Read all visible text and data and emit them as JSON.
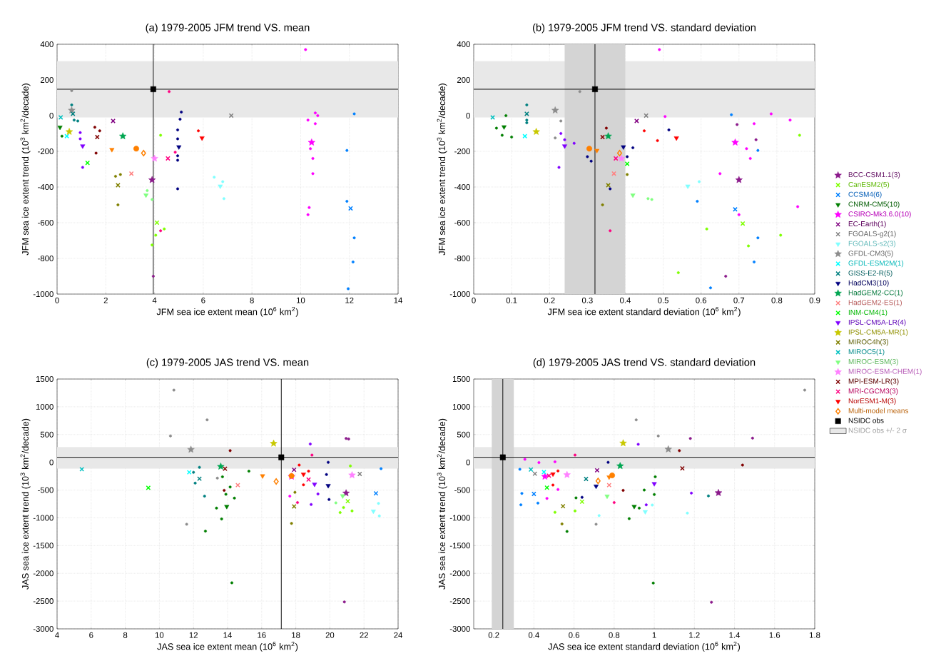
{
  "chart_data": [
    {
      "type": "scatter",
      "title": "(a) 1979-2005 JFM trend VS. mean",
      "xlabel": "JFM sea ice extent mean (10$^{6}$ km$^{2}$)",
      "ylabel": "JFM sea ice extent trend (10$^{3}$ km$^{2}$/decade)",
      "xlim": [
        0,
        14
      ],
      "ylim": [
        -1000,
        400
      ],
      "xticks": [
        0,
        2,
        4,
        6,
        8,
        10,
        12,
        14
      ],
      "yticks": [
        -1000,
        -800,
        -600,
        -400,
        -200,
        0,
        200,
        400
      ],
      "grid": true,
      "bands": [
        {
          "axis": "y",
          "from": -10,
          "to": 305,
          "color": "#e8e8e8"
        }
      ],
      "ref_lines": [
        {
          "axis": "x",
          "value": 3.95,
          "color": "#000000"
        },
        {
          "axis": "y",
          "value": 148,
          "color": "#000000"
        }
      ],
      "series": [
        {
          "color": "#8b1a8b",
          "marker": "star",
          "x": [
            3.9
          ],
          "values": [
            -360
          ]
        },
        {
          "color": "#7fff00",
          "marker": "cross",
          "x": [
            4.1
          ],
          "values": [
            -600
          ]
        },
        {
          "color": "#0080ff",
          "marker": "cross",
          "x": [
            12.05
          ],
          "values": [
            -520
          ]
        },
        {
          "color": "#007f00",
          "marker": "triangle",
          "x": [
            0.12
          ],
          "values": [
            -65
          ]
        },
        {
          "color": "#ff00ff",
          "marker": "star",
          "x": [
            10.45
          ],
          "values": [
            -150
          ]
        },
        {
          "color": "#800080",
          "marker": "cross",
          "x": [
            2.3
          ],
          "values": [
            -30
          ]
        },
        {
          "color": "#808080",
          "marker": "cross",
          "x": [
            7.15
          ],
          "values": [
            0
          ]
        },
        {
          "color": "#80ffff",
          "marker": "triangle",
          "x": [
            6.7
          ],
          "values": [
            -395
          ]
        },
        {
          "color": "#8c8c8c",
          "marker": "star",
          "x": [
            0.6
          ],
          "values": [
            30
          ]
        },
        {
          "color": "#00ffff",
          "marker": "cross",
          "x": [
            0.4
          ],
          "values": [
            -115
          ]
        },
        {
          "color": "#008080",
          "marker": "cross",
          "x": [
            0.65
          ],
          "values": [
            10
          ]
        },
        {
          "color": "#000080",
          "marker": "triangle",
          "x": [
            5.0
          ],
          "values": [
            -175
          ]
        },
        {
          "color": "#00a651",
          "marker": "star",
          "x": [
            2.7
          ],
          "values": [
            -115
          ]
        },
        {
          "color": "#ff8080",
          "marker": "cross",
          "x": [
            3.05
          ],
          "values": [
            -325
          ]
        },
        {
          "color": "#00ff00",
          "marker": "cross",
          "x": [
            1.25
          ],
          "values": [
            -265
          ]
        },
        {
          "color": "#8000ff",
          "marker": "triangle",
          "x": [
            1.05
          ],
          "values": [
            -170
          ]
        },
        {
          "color": "#c8c800",
          "marker": "star",
          "x": [
            0.5
          ],
          "values": [
            -90
          ]
        },
        {
          "color": "#808000",
          "marker": "cross",
          "x": [
            2.5
          ],
          "values": [
            -390
          ]
        },
        {
          "color": "#00c0c0",
          "marker": "cross",
          "x": [
            0.15
          ],
          "values": [
            -10
          ]
        },
        {
          "color": "#80ff80",
          "marker": "triangle",
          "x": [
            3.65
          ],
          "values": [
            -445
          ]
        },
        {
          "color": "#ff80ff",
          "marker": "star",
          "x": [
            4.0
          ],
          "values": [
            -240
          ]
        },
        {
          "color": "#800000",
          "marker": "cross",
          "x": [
            1.65
          ],
          "values": [
            -120
          ]
        },
        {
          "color": "#ff0080",
          "marker": "cross",
          "x": [
            4.55
          ],
          "values": [
            -240
          ]
        },
        {
          "color": "#ff0000",
          "marker": "triangle",
          "x": [
            5.95
          ],
          "values": [
            -125
          ]
        },
        {
          "color": "#ff8000",
          "marker": "diamond",
          "x": [
            3.55
          ],
          "values": [
            -210
          ]
        },
        {
          "color": "#ff8000",
          "marker": "circle",
          "x": [
            3.25
          ],
          "values": [
            -185
          ]
        },
        {
          "color": "#ff8000",
          "marker": "triangle",
          "x": [
            2.25
          ],
          "values": [
            -190
          ]
        },
        {
          "color": "#000000",
          "marker": "square",
          "x": [
            3.95
          ],
          "values": [
            148
          ]
        },
        {
          "marker": "circle",
          "x": [
            10.2,
            10.7,
            10.6,
            10.3,
            10.6,
            10.4,
            10.5,
            10.5,
            10.35,
            10.3,
            12.2,
            11.9,
            11.9,
            12.2,
            12.15,
            11.95,
            5.1,
            5.05,
            4.95,
            4.95,
            4.95,
            4.95,
            4.95,
            6.45,
            6.8,
            6.85,
            4.25,
            4.4,
            4.05,
            3.9,
            4.6,
            4.85,
            4.25,
            5.8,
            1.55,
            1.75,
            1.6,
            2.4,
            2.6,
            2.5,
            0.95,
            0.95,
            1.05,
            0.6,
            0.7,
            0.85,
            3.95,
            3.7,
            3.9,
            0.6,
            0.2
          ],
          "values": [
            370,
            0,
            15,
            -25,
            -45,
            -185,
            -240,
            -325,
            -515,
            -555,
            10,
            -195,
            -480,
            -685,
            -820,
            -970,
            20,
            -20,
            -80,
            -130,
            -225,
            -250,
            -410,
            -345,
            -370,
            -465,
            -110,
            -635,
            -670,
            -725,
            135,
            -205,
            -645,
            -85,
            -65,
            -85,
            -210,
            -340,
            -330,
            -500,
            -95,
            -130,
            -290,
            60,
            -25,
            -30,
            -900,
            -420,
            -470,
            140,
            -115
          ],
          "colors": [
            "#ff00ff",
            "#ff00ff",
            "#ff00ff",
            "#ff00ff",
            "#ff00ff",
            "#ff00ff",
            "#ff00ff",
            "#ff00ff",
            "#ff00ff",
            "#ff00ff",
            "#0080ff",
            "#0080ff",
            "#0080ff",
            "#0080ff",
            "#0080ff",
            "#0080ff",
            "#000080",
            "#000080",
            "#000080",
            "#000080",
            "#000080",
            "#000080",
            "#000080",
            "#80ffff",
            "#80ffff",
            "#80ffff",
            "#7fff00",
            "#7fff00",
            "#7fff00",
            "#7fff00",
            "#ff0080",
            "#ff0080",
            "#ff0080",
            "#ff0000",
            "#800000",
            "#800000",
            "#800000",
            "#808000",
            "#808000",
            "#808000",
            "#8000ff",
            "#8000ff",
            "#8000ff",
            "#008080",
            "#008080",
            "#008080",
            "#8b1a8b",
            "#80ff80",
            "#80ff80",
            "#8c8c8c",
            "#007f00"
          ]
        }
      ]
    },
    {
      "type": "scatter",
      "title": "(b) 1979-2005 JFM trend VS. standard deviation",
      "xlabel": "JFM sea ice extent standard deviation (10$^{6}$ km$^{2}$)",
      "ylabel": "JFM sea ice extent trend (10$^{3}$ km$^{2}$/decade)",
      "xlim": [
        0,
        0.9
      ],
      "ylim": [
        -1000,
        400
      ],
      "xticks": [
        0,
        0.1,
        0.2,
        0.3,
        0.4,
        0.5,
        0.6,
        0.7,
        0.8,
        0.9
      ],
      "yticks": [
        -1000,
        -800,
        -600,
        -400,
        -200,
        0,
        200,
        400
      ],
      "grid": true,
      "legend": "right",
      "bands": [
        {
          "axis": "y",
          "from": -10,
          "to": 305,
          "color": "#e8e8e8",
          "label": "NSIDC obs +/- 2 σ"
        },
        {
          "axis": "x",
          "from": 0.24,
          "to": 0.4,
          "color": "#d4d4d4"
        }
      ],
      "ref_lines": [
        {
          "axis": "x",
          "value": 0.32,
          "color": "#000000"
        },
        {
          "axis": "y",
          "value": 148,
          "color": "#000000"
        }
      ],
      "series": [
        {
          "name": "BCC-CSM1.1(3)",
          "color": "#8b1a8b",
          "marker": "star",
          "x": [
            0.7
          ],
          "values": [
            -360
          ]
        },
        {
          "name": "CanESM2(5)",
          "color": "#7fff00",
          "marker": "cross",
          "x": [
            0.71
          ],
          "values": [
            -605
          ]
        },
        {
          "name": "CCSM4(6)",
          "color": "#0080ff",
          "marker": "cross",
          "x": [
            0.69
          ],
          "values": [
            -525
          ]
        },
        {
          "name": "CNRM-CM5(10)",
          "color": "#007f00",
          "marker": "triangle",
          "x": [
            0.08
          ],
          "values": [
            -63
          ]
        },
        {
          "name": "CSIRO-Mk3.6.0(10)",
          "color": "#ff00ff",
          "marker": "star",
          "x": [
            0.69
          ],
          "values": [
            -150
          ]
        },
        {
          "name": "EC-Earth(1)",
          "color": "#800080",
          "marker": "cross",
          "x": [
            0.43
          ],
          "values": [
            -30
          ]
        },
        {
          "name": "FGOALS-g2(1)",
          "color": "#808080",
          "marker": "cross",
          "x": [
            0.455
          ],
          "values": [
            0
          ]
        },
        {
          "name": "FGOALS-s2(3)",
          "color": "#80ffff",
          "marker": "triangle",
          "x": [
            0.565
          ],
          "values": [
            -395
          ]
        },
        {
          "name": "GFDL-CM3(5)",
          "color": "#8c8c8c",
          "marker": "star",
          "x": [
            0.215
          ],
          "values": [
            30
          ]
        },
        {
          "name": "GFDL-ESM2M(1)",
          "color": "#00ffff",
          "marker": "cross",
          "x": [
            0.135
          ],
          "values": [
            -115
          ]
        },
        {
          "name": "GISS-E2-R(5)",
          "color": "#008080",
          "marker": "cross",
          "x": [
            0.14
          ],
          "values": [
            10
          ]
        },
        {
          "name": "HadCM3(10)",
          "color": "#000080",
          "marker": "triangle",
          "x": [
            0.395
          ],
          "values": [
            -175
          ]
        },
        {
          "name": "HadGEM2-CC(1)",
          "color": "#00a651",
          "marker": "star",
          "x": [
            0.355
          ],
          "values": [
            -115
          ]
        },
        {
          "name": "HadGEM2-ES(1)",
          "color": "#ff8080",
          "marker": "cross",
          "x": [
            0.37
          ],
          "values": [
            -325
          ]
        },
        {
          "name": "INM-CM4(1)",
          "color": "#00ff00",
          "marker": "cross",
          "x": [
            0.405
          ],
          "values": [
            -270
          ]
        },
        {
          "name": "IPSL-CM5A-LR(4)",
          "color": "#8000ff",
          "marker": "triangle",
          "x": [
            0.24
          ],
          "values": [
            -170
          ]
        },
        {
          "name": "IPSL-CM5A-MR(1)",
          "color": "#c8c800",
          "marker": "star",
          "x": [
            0.165
          ],
          "values": [
            -90
          ]
        },
        {
          "name": "MIROC4h(3)",
          "color": "#808000",
          "marker": "cross",
          "x": [
            0.355
          ],
          "values": [
            -390
          ]
        },
        {
          "name": "MIROC5(1)",
          "color": "#00c0c0",
          "marker": "cross",
          "x": [
            0.05
          ],
          "values": [
            -10
          ]
        },
        {
          "name": "MIROC-ESM(3)",
          "color": "#80ff80",
          "marker": "triangle",
          "x": [
            0.42
          ],
          "values": [
            -445
          ]
        },
        {
          "name": "MIROC-ESM-CHEM(1)",
          "color": "#ff80ff",
          "marker": "star",
          "x": [
            0.39
          ],
          "values": [
            -240
          ]
        },
        {
          "name": "MPI-ESM-LR(3)",
          "color": "#800000",
          "marker": "cross",
          "x": [
            0.34
          ],
          "values": [
            -120
          ]
        },
        {
          "name": "MRI-CGCM3(3)",
          "color": "#ff0080",
          "marker": "cross",
          "x": [
            0.375
          ],
          "values": [
            -240
          ]
        },
        {
          "name": "NorESM1-M(3)",
          "color": "#ff0000",
          "marker": "triangle",
          "x": [
            0.535
          ],
          "values": [
            -125
          ]
        },
        {
          "name": "Multi-model means",
          "color": "#ff8000",
          "marker": "diamond",
          "x": [
            0.385
          ],
          "values": [
            -210
          ]
        },
        {
          "color": "#ff8000",
          "marker": "circle",
          "x": [
            0.305
          ],
          "values": [
            -185
          ]
        },
        {
          "color": "#ff8000",
          "marker": "triangle",
          "x": [
            0.325
          ],
          "values": [
            -195
          ]
        },
        {
          "name": "NSIDC obs",
          "color": "#000000",
          "marker": "square",
          "x": [
            0.32
          ],
          "values": [
            148
          ]
        },
        {
          "marker": "circle",
          "x": [
            0.49,
            0.785,
            0.68,
            0.835,
            0.695,
            0.74,
            0.745,
            0.86,
            0.72,
            0.75,
            0.73,
            0.65,
            0.595,
            0.59,
            0.855,
            0.7,
            0.615,
            0.81,
            0.75,
            0.725,
            0.74,
            0.665,
            0.54,
            0.625,
            0.505,
            0.515,
            0.45,
            0.485,
            0.42,
            0.405,
            0.36,
            0.34,
            0.405,
            0.36,
            0.3,
            0.31,
            0.225,
            0.265,
            0.24,
            0.23,
            0.215,
            0.23,
            0.14,
            0.14,
            0.14,
            0.06,
            0.075,
            0.1,
            0.085,
            0.28,
            0.35,
            0.46,
            0.47
          ],
          "values": [
            370,
            10,
            5,
            -25,
            -50,
            -45,
            -135,
            -110,
            -185,
            -195,
            -240,
            -325,
            -370,
            -480,
            -510,
            -555,
            -635,
            -670,
            -685,
            -730,
            -820,
            -900,
            -880,
            -965,
            -5,
            -80,
            -85,
            -140,
            -180,
            -230,
            -645,
            -500,
            -330,
            -410,
            -230,
            -255,
            -290,
            -155,
            -135,
            -100,
            -125,
            -30,
            60,
            -25,
            -40,
            -70,
            -110,
            -120,
            0,
            135,
            -70,
            -465,
            -470
          ],
          "colors": [
            "#ff00ff",
            "#ff00ff",
            "#0080ff",
            "#ff00ff",
            "#8b1a8b",
            "#ff00ff",
            "#8b1a8b",
            "#7fff00",
            "#ff00ff",
            "#0080ff",
            "#ff00ff",
            "#ff00ff",
            "#80ffff",
            "#0080ff",
            "#ff00ff",
            "#ff00ff",
            "#7fff00",
            "#7fff00",
            "#0080ff",
            "#7fff00",
            "#0080ff",
            "#8b1a8b",
            "#7fff00",
            "#0080ff",
            "#ff00ff",
            "#000080",
            "#ff0000",
            "#ff0000",
            "#000080",
            "#000080",
            "#ff0080",
            "#808000",
            "#808000",
            "#000080",
            "#000080",
            "#000080",
            "#8000ff",
            "#8000ff",
            "#8000ff",
            "#8000ff",
            "#8c8c8c",
            "#8c8c8c",
            "#008080",
            "#008080",
            "#008080",
            "#007f00",
            "#007f00",
            "#007f00",
            "#007f00",
            "#8c8c8c",
            "#800000",
            "#80ff80",
            "#80ff80"
          ]
        }
      ]
    },
    {
      "type": "scatter",
      "title": "(c) 1979-2005 JAS trend VS. mean",
      "xlabel": "JAS sea ice extent mean (10$^{6}$ km$^{2}$)",
      "ylabel": "JAS sea ice extent trend (10$^{3}$ km$^{2}$/decade)",
      "xlim": [
        4,
        24
      ],
      "ylim": [
        -3000,
        1500
      ],
      "xticks": [
        4,
        6,
        8,
        10,
        12,
        14,
        16,
        18,
        20,
        22,
        24
      ],
      "yticks": [
        -3000,
        -2500,
        -2000,
        -1500,
        -1000,
        -500,
        0,
        500,
        1000,
        1500
      ],
      "grid": true,
      "bands": [
        {
          "axis": "y",
          "from": -115,
          "to": 275,
          "color": "#e8e8e8"
        }
      ],
      "ref_lines": [
        {
          "axis": "x",
          "value": 17.15,
          "color": "#000000"
        },
        {
          "axis": "y",
          "value": 90,
          "color": "#000000"
        }
      ],
      "series": [
        {
          "color": "#8b1a8b",
          "marker": "star",
          "x": [
            20.95
          ],
          "values": [
            -555
          ]
        },
        {
          "color": "#7fff00",
          "marker": "cross",
          "x": [
            21.05
          ],
          "values": [
            -700
          ]
        },
        {
          "color": "#0080ff",
          "marker": "cross",
          "x": [
            22.7
          ],
          "values": [
            -560
          ]
        },
        {
          "color": "#007f00",
          "marker": "triangle",
          "x": [
            13.95
          ],
          "values": [
            -795
          ]
        },
        {
          "color": "#ff00ff",
          "marker": "star",
          "x": [
            17.75
          ],
          "values": [
            -255
          ]
        },
        {
          "color": "#800080",
          "marker": "cross",
          "x": [
            17.9
          ],
          "values": [
            -135
          ]
        },
        {
          "color": "#808080",
          "marker": "cross",
          "x": [
            21.75
          ],
          "values": [
            -210
          ]
        },
        {
          "color": "#80ffff",
          "marker": "triangle",
          "x": [
            22.55
          ],
          "values": [
            -880
          ]
        },
        {
          "color": "#8c8c8c",
          "marker": "star",
          "x": [
            11.85
          ],
          "values": [
            230
          ]
        },
        {
          "color": "#00ffff",
          "marker": "cross",
          "x": [
            11.75
          ],
          "values": [
            -180
          ]
        },
        {
          "color": "#008080",
          "marker": "cross",
          "x": [
            12.35
          ],
          "values": [
            -295
          ]
        },
        {
          "color": "#000080",
          "marker": "triangle",
          "x": [
            19.9
          ],
          "values": [
            -420
          ]
        },
        {
          "color": "#00a651",
          "marker": "star",
          "x": [
            13.6
          ],
          "values": [
            -75
          ]
        },
        {
          "color": "#ff8080",
          "marker": "cross",
          "x": [
            14.6
          ],
          "values": [
            -410
          ]
        },
        {
          "color": "#00ff00",
          "marker": "cross",
          "x": [
            9.35
          ],
          "values": [
            -460
          ]
        },
        {
          "color": "#8000ff",
          "marker": "triangle",
          "x": [
            19.1
          ],
          "values": [
            -395
          ]
        },
        {
          "color": "#c8c800",
          "marker": "star",
          "x": [
            16.7
          ],
          "values": [
            340
          ]
        },
        {
          "color": "#808000",
          "marker": "cross",
          "x": [
            17.9
          ],
          "values": [
            -795
          ]
        },
        {
          "color": "#00c0c0",
          "marker": "cross",
          "x": [
            5.45
          ],
          "values": [
            -125
          ]
        },
        {
          "color": "#80ff80",
          "marker": "triangle",
          "x": [
            20.75
          ],
          "values": [
            -605
          ]
        },
        {
          "color": "#ff80ff",
          "marker": "star",
          "x": [
            21.3
          ],
          "values": [
            -230
          ]
        },
        {
          "color": "#800000",
          "marker": "cross",
          "x": [
            13.85
          ],
          "values": [
            -115
          ]
        },
        {
          "color": "#ff0080",
          "marker": "cross",
          "x": [
            18.75
          ],
          "values": [
            -310
          ]
        },
        {
          "color": "#ff0000",
          "marker": "triangle",
          "x": [
            18.45
          ],
          "values": [
            -215
          ]
        },
        {
          "color": "#ff8000",
          "marker": "diamond",
          "x": [
            16.85
          ],
          "values": [
            -345
          ]
        },
        {
          "color": "#ff8000",
          "marker": "circle",
          "x": [
            17.75
          ],
          "values": [
            -245
          ]
        },
        {
          "color": "#ff8000",
          "marker": "triangle",
          "x": [
            16.05
          ],
          "values": [
            -245
          ]
        },
        {
          "color": "#000000",
          "marker": "square",
          "x": [
            17.15
          ],
          "values": [
            90
          ]
        },
        {
          "marker": "circle",
          "x": [
            10.85,
            12.8,
            10.65,
            20.95,
            21.1,
            18.85,
            18.95,
            14.15,
            19.9,
            23.0,
            21.2,
            15.25,
            18.2,
            18.75,
            18.45,
            18.1,
            17.65,
            19.8,
            19.95,
            19.3,
            18.9,
            20.35,
            20.6,
            20.8,
            21.3,
            22.9,
            22.85,
            17.75,
            17.95,
            11.6,
            13.4,
            12.7,
            13.65,
            13.35,
            14.25,
            20.85,
            14.4,
            13.9,
            14.15,
            13.7,
            13.8,
            12.0,
            12.35,
            12.1,
            12.65
          ],
          "values": [
            1300,
            765,
            475,
            430,
            420,
            330,
            130,
            210,
            0,
            -115,
            -65,
            -160,
            -50,
            -160,
            -405,
            -725,
            -610,
            -220,
            -670,
            -570,
            -760,
            -730,
            -905,
            -815,
            -875,
            -965,
            -740,
            -1100,
            -540,
            -1115,
            -285,
            -1240,
            -1020,
            -825,
            -2170,
            -2515,
            -645,
            -575,
            -445,
            -260,
            -505,
            -180,
            -90,
            -375,
            -610
          ],
          "colors": [
            "#8c8c8c",
            "#8c8c8c",
            "#8c8c8c",
            "#8b1a8b",
            "#8b1a8b",
            "#8000ff",
            "#ff0080",
            "#800000",
            "#000080",
            "#0080ff",
            "#7fff00",
            "#007f00",
            "#ff0000",
            "#ff0000",
            "#ff0000",
            "#ff0080",
            "#ff00ff",
            "#000080",
            "#000080",
            "#8000ff",
            "#8000ff",
            "#80ff80",
            "#7fff00",
            "#7fff00",
            "#7fff00",
            "#80ffff",
            "#80ffff",
            "#808000",
            "#808000",
            "#8c8c8c",
            "#8c8c8c",
            "#007f00",
            "#007f00",
            "#007f00",
            "#007f00",
            "#8b1a8b",
            "#007f00",
            "#007f00",
            "#007f00",
            "#007f00",
            "#800000",
            "#008080",
            "#008080",
            "#008080",
            "#008080"
          ]
        }
      ]
    },
    {
      "type": "scatter",
      "title": "(d) 1979-2005 JAS trend VS. standard deviation",
      "xlabel": "JAS sea ice extent standard deviation (10$^{6}$ km$^{2}$)",
      "ylabel": "JAS sea ice extent trend (10$^{3}$ km$^{2}$/decade)",
      "xlim": [
        0.1,
        1.8
      ],
      "ylim": [
        -3000,
        1500
      ],
      "xticks": [
        0.2,
        0.4,
        0.6,
        0.8,
        1,
        1.2,
        1.4,
        1.6,
        1.8
      ],
      "yticks": [
        -3000,
        -2500,
        -2000,
        -1500,
        -1000,
        -500,
        0,
        500,
        1000,
        1500
      ],
      "grid": true,
      "bands": [
        {
          "axis": "y",
          "from": -115,
          "to": 275,
          "color": "#e8e8e8"
        },
        {
          "axis": "x",
          "from": 0.19,
          "to": 0.3,
          "color": "#d4d4d4"
        }
      ],
      "ref_lines": [
        {
          "axis": "x",
          "value": 0.245,
          "color": "#000000"
        },
        {
          "axis": "y",
          "value": 90,
          "color": "#000000"
        }
      ],
      "series": [
        {
          "color": "#8b1a8b",
          "marker": "star",
          "x": [
            1.32
          ],
          "values": [
            -550
          ]
        },
        {
          "color": "#7fff00",
          "marker": "cross",
          "x": [
            0.64
          ],
          "values": [
            -710
          ]
        },
        {
          "color": "#0080ff",
          "marker": "cross",
          "x": [
            0.4
          ],
          "values": [
            -570
          ]
        },
        {
          "color": "#007f00",
          "marker": "triangle",
          "x": [
            0.9
          ],
          "values": [
            -795
          ]
        },
        {
          "color": "#ff00ff",
          "marker": "star",
          "x": [
            0.455
          ],
          "values": [
            -255
          ]
        },
        {
          "color": "#800080",
          "marker": "cross",
          "x": [
            0.715
          ],
          "values": [
            -145
          ]
        },
        {
          "color": "#808080",
          "marker": "cross",
          "x": [
            0.405
          ],
          "values": [
            -205
          ]
        },
        {
          "color": "#80ffff",
          "marker": "triangle",
          "x": [
            0.955
          ],
          "values": [
            -890
          ]
        },
        {
          "color": "#8c8c8c",
          "marker": "star",
          "x": [
            1.07
          ],
          "values": [
            235
          ]
        },
        {
          "color": "#00ffff",
          "marker": "cross",
          "x": [
            0.45
          ],
          "values": [
            -175
          ]
        },
        {
          "color": "#008080",
          "marker": "cross",
          "x": [
            0.66
          ],
          "values": [
            -300
          ]
        },
        {
          "color": "#000080",
          "marker": "triangle",
          "x": [
            0.71
          ],
          "values": [
            -430
          ]
        },
        {
          "color": "#00a651",
          "marker": "star",
          "x": [
            0.83
          ],
          "values": [
            -65
          ]
        },
        {
          "color": "#ff8080",
          "marker": "cross",
          "x": [
            0.775
          ],
          "values": [
            -410
          ]
        },
        {
          "color": "#00ff00",
          "marker": "cross",
          "x": [
            0.465
          ],
          "values": [
            -455
          ]
        },
        {
          "color": "#8000ff",
          "marker": "triangle",
          "x": [
            1.0
          ],
          "values": [
            -385
          ]
        },
        {
          "color": "#c8c800",
          "marker": "star",
          "x": [
            0.845
          ],
          "values": [
            345
          ]
        },
        {
          "color": "#808000",
          "marker": "cross",
          "x": [
            0.545
          ],
          "values": [
            -790
          ]
        },
        {
          "color": "#00c0c0",
          "marker": "cross",
          "x": [
            0.385
          ],
          "values": [
            -130
          ]
        },
        {
          "color": "#80ff80",
          "marker": "triangle",
          "x": [
            0.765
          ],
          "values": [
            -610
          ]
        },
        {
          "color": "#ff80ff",
          "marker": "star",
          "x": [
            0.565
          ],
          "values": [
            -225
          ]
        },
        {
          "color": "#800000",
          "marker": "cross",
          "x": [
            1.14
          ],
          "values": [
            -110
          ]
        },
        {
          "color": "#ff0080",
          "marker": "cross",
          "x": [
            0.475
          ],
          "values": [
            -240
          ]
        },
        {
          "color": "#ff0000",
          "marker": "triangle",
          "x": [
            0.495
          ],
          "values": [
            -210
          ]
        },
        {
          "color": "#ff8000",
          "marker": "diamond",
          "x": [
            0.72
          ],
          "values": [
            -335
          ]
        },
        {
          "color": "#ff8000",
          "marker": "circle",
          "x": [
            0.79
          ],
          "values": [
            -235
          ]
        },
        {
          "color": "#ff8000",
          "marker": "triangle",
          "x": [
            0.775
          ],
          "values": [
            -265
          ]
        },
        {
          "color": "#000000",
          "marker": "square",
          "x": [
            0.245
          ],
          "values": [
            90
          ]
        },
        {
          "marker": "circle",
          "x": [
            1.75,
            0.91,
            1.02,
            1.49,
            1.18,
            0.92,
            1.125,
            0.605,
            1.44,
            1.27,
            1.185,
            1.165,
            0.995,
            1.285,
            0.54,
            0.565,
            0.71,
            0.875,
            0.725,
            0.33,
            0.34,
            0.335,
            0.42,
            0.505,
            0.605,
            0.61,
            0.64,
            0.77,
            1.0,
            1.005,
            0.96,
            0.95,
            0.925,
            0.845,
            0.8,
            0.99,
            0.505,
            0.425,
            0.355,
            0.52,
            0.495,
            0.52,
            0.465
          ],
          "values": [
            1300,
            765,
            475,
            435,
            430,
            325,
            210,
            130,
            -50,
            -605,
            -555,
            -915,
            -2175,
            -2520,
            -1110,
            -1245,
            -1115,
            -1015,
            -960,
            -125,
            -560,
            -765,
            -735,
            -900,
            -875,
            -640,
            -630,
            0,
            -580,
            -260,
            -765,
            -500,
            -825,
            -505,
            -725,
            -770,
            10,
            -5,
            55,
            -155,
            -410,
            -490,
            -650
          ],
          "colors": [
            "#8c8c8c",
            "#8c8c8c",
            "#8c8c8c",
            "#8b1a8b",
            "#8b1a8b",
            "#8000ff",
            "#800000",
            "#ff0080",
            "#800000",
            "#008080",
            "#8000ff",
            "#80ffff",
            "#007f00",
            "#8b1a8b",
            "#808000",
            "#007f00",
            "#8c8c8c",
            "#007f00",
            "#80ffff",
            "#0080ff",
            "#0080ff",
            "#0080ff",
            "#0080ff",
            "#7fff00",
            "#7fff00",
            "#007f00",
            "#000080",
            "#000080",
            "#007f00",
            "#007f00",
            "#8000ff",
            "#007f00",
            "#007f00",
            "#800000",
            "#ff0080",
            "#80ffff",
            "#ff00ff",
            "#ff00ff",
            "#ff00ff",
            "#ff0000",
            "#ff0000",
            "#ff00ff",
            "#ff00ff"
          ]
        }
      ]
    }
  ]
}
